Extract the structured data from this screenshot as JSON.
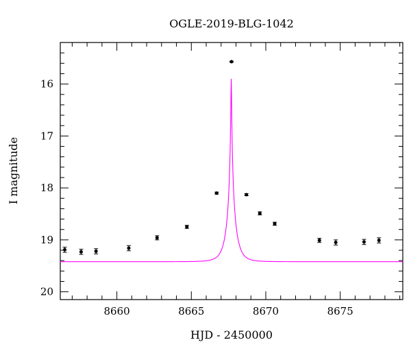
{
  "chart_data": {
    "type": "scatter",
    "title": "OGLE-2019-BLG-1042",
    "xlabel": "HJD - 2450000",
    "ylabel": "I magnitude",
    "xlim": [
      8656.2,
      8679.2
    ],
    "ylim": [
      20.15,
      15.2
    ],
    "y_inverted": true,
    "x_ticks": [
      8660,
      8665,
      8670,
      8675
    ],
    "y_ticks": [
      16,
      17,
      18,
      19,
      20
    ],
    "x_minor_step": 1,
    "y_minor_step": 0.2,
    "grid": false,
    "points": [
      {
        "x": 8656.5,
        "y": 19.19,
        "err": 0.05
      },
      {
        "x": 8657.6,
        "y": 19.23,
        "err": 0.05
      },
      {
        "x": 8658.6,
        "y": 19.22,
        "err": 0.05
      },
      {
        "x": 8660.8,
        "y": 19.16,
        "err": 0.05
      },
      {
        "x": 8662.7,
        "y": 18.96,
        "err": 0.04
      },
      {
        "x": 8664.7,
        "y": 18.75,
        "err": 0.03
      },
      {
        "x": 8666.7,
        "y": 18.1,
        "err": 0.02
      },
      {
        "x": 8667.7,
        "y": 15.57,
        "err": 0.01
      },
      {
        "x": 8668.7,
        "y": 18.13,
        "err": 0.02
      },
      {
        "x": 8669.6,
        "y": 18.49,
        "err": 0.03
      },
      {
        "x": 8670.6,
        "y": 18.69,
        "err": 0.03
      },
      {
        "x": 8673.6,
        "y": 19.01,
        "err": 0.04
      },
      {
        "x": 8674.7,
        "y": 19.05,
        "err": 0.05
      },
      {
        "x": 8676.6,
        "y": 19.04,
        "err": 0.05
      },
      {
        "x": 8677.6,
        "y": 19.01,
        "err": 0.05
      }
    ],
    "model": {
      "name": "",
      "color": "#ff00ff",
      "t0": 8667.68,
      "tE": 0.55,
      "u0": 0.039,
      "I_base": 19.42
    },
    "point_color": "#000000"
  }
}
